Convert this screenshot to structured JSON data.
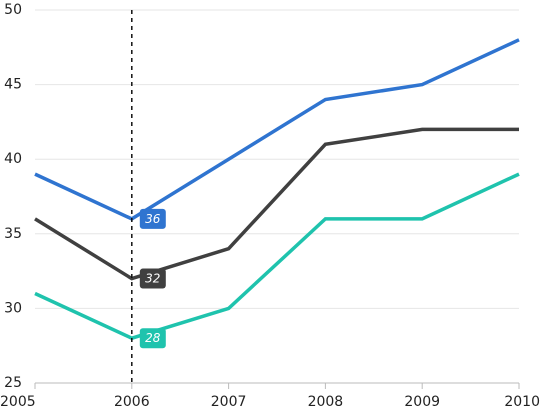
{
  "chart_data": {
    "type": "line",
    "title": "",
    "xlabel": "",
    "ylabel": "",
    "x": [
      2005,
      2006,
      2007,
      2008,
      2009,
      2010
    ],
    "xlim": [
      2005,
      2010
    ],
    "ylim": [
      25,
      50
    ],
    "x_ticks": [
      "2005",
      "2006",
      "2007",
      "2008",
      "2009",
      "2010"
    ],
    "y_ticks": [
      "25",
      "30",
      "35",
      "40",
      "45",
      "50"
    ],
    "grid": "horizontal",
    "legend": "none",
    "series": [
      {
        "color": "#2f74d0",
        "values": [
          39,
          36,
          40,
          44,
          45,
          48
        ]
      },
      {
        "color": "#404040",
        "values": [
          36,
          32,
          34,
          41,
          42,
          42
        ]
      },
      {
        "color": "#1fc3ad",
        "values": [
          31,
          28,
          30,
          36,
          36,
          39
        ]
      }
    ],
    "crosshair": {
      "x": 2006,
      "labels": [
        "36",
        "32",
        "28"
      ]
    }
  }
}
